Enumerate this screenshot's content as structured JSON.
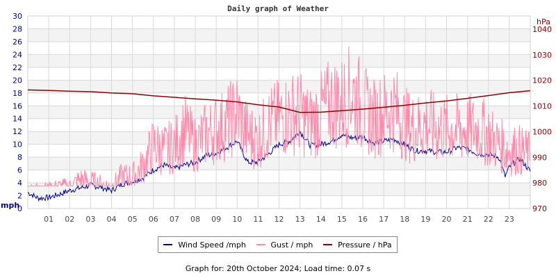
{
  "chart_data": {
    "type": "line",
    "title": "Daily graph of Weather",
    "x_ticks": [
      "01",
      "02",
      "03",
      "04",
      "05",
      "06",
      "07",
      "08",
      "09",
      "10",
      "11",
      "12",
      "13",
      "14",
      "15",
      "16",
      "17",
      "18",
      "19",
      "20",
      "21",
      "22",
      "23"
    ],
    "xlim": [
      0,
      24
    ],
    "y_left": {
      "label": "mph",
      "ylim": [
        0,
        30
      ],
      "ticks": [
        0,
        2,
        4,
        6,
        8,
        10,
        12,
        14,
        16,
        18,
        20,
        22,
        24,
        26,
        28,
        30
      ]
    },
    "y_right": {
      "label": "hPa",
      "ylim": [
        970,
        1045
      ],
      "ticks": [
        970,
        980,
        990,
        1000,
        1010,
        1020,
        1030,
        1040
      ]
    },
    "grid": true,
    "legend_placement": "bottom",
    "series": [
      {
        "name": "Wind Speed /mph",
        "axis": "left",
        "color": "#00008b",
        "x": [
          0,
          0.5,
          1,
          1.5,
          2,
          2.5,
          3,
          3.5,
          4,
          4.5,
          5,
          5.5,
          6,
          6.5,
          7,
          7.5,
          8,
          8.5,
          9,
          9.5,
          10,
          10.5,
          11,
          11.5,
          12,
          12.5,
          13,
          13.5,
          14,
          14.5,
          15,
          15.5,
          16,
          16.5,
          17,
          17.5,
          18,
          18.5,
          19,
          19.5,
          20,
          20.5,
          21,
          21.5,
          22,
          22.5,
          22.8,
          23,
          23.5,
          24
        ],
        "values": [
          2.5,
          1.6,
          1.7,
          2.2,
          2.8,
          3.2,
          3.6,
          3.3,
          2.8,
          3.8,
          4.2,
          4.8,
          6,
          6.8,
          6.2,
          6.8,
          7.2,
          8.2,
          8.6,
          9.5,
          10.5,
          7.2,
          7.2,
          8.5,
          10,
          10.5,
          12,
          9.8,
          10,
          10.5,
          11.5,
          11,
          11.2,
          10.2,
          10.5,
          10.8,
          10,
          9,
          9,
          8.8,
          8.8,
          9.5,
          9.3,
          8.5,
          8.5,
          8,
          5,
          6.5,
          7.8,
          5.8
        ]
      },
      {
        "name": "Gust / mph",
        "axis": "left",
        "color": "#ff88aa",
        "x": [
          0,
          0.5,
          1,
          1.5,
          2,
          2.5,
          3,
          3.5,
          4,
          4.5,
          5,
          5.5,
          6,
          6.5,
          7,
          7.5,
          8,
          8.5,
          9,
          9.5,
          10,
          10.5,
          11,
          11.5,
          12,
          12.5,
          13,
          13.5,
          14,
          14.5,
          15,
          15.5,
          16,
          16.5,
          17,
          17.5,
          18,
          18.5,
          19,
          19.5,
          20,
          20.5,
          21,
          21.5,
          22,
          22.5,
          23,
          23.5,
          24
        ],
        "values": [
          3.5,
          3.5,
          3.5,
          4,
          4,
          5.5,
          5,
          4.5,
          4,
          6,
          6,
          8,
          12,
          11,
          12,
          15,
          12,
          14,
          15,
          16,
          18,
          14,
          13,
          16,
          17,
          18,
          18,
          16,
          18,
          20,
          20,
          22,
          19,
          17,
          18,
          19,
          16,
          15,
          16,
          15,
          15,
          15,
          15,
          15,
          14,
          12,
          11,
          11,
          10
        ]
      },
      {
        "name": "Pressure / hPa",
        "axis": "right",
        "color": "#8b0000",
        "x": [
          0,
          1,
          2,
          3,
          4,
          5,
          6,
          7,
          8,
          9,
          10,
          11,
          12,
          13,
          14,
          15,
          16,
          17,
          18,
          19,
          20,
          21,
          22,
          23,
          24
        ],
        "values": [
          1016.3,
          1016.1,
          1015.8,
          1015.6,
          1015.1,
          1014.8,
          1014,
          1013.4,
          1012.8,
          1012.3,
          1011.6,
          1010.5,
          1009.6,
          1007.5,
          1007.6,
          1008.2,
          1008.8,
          1009.5,
          1010.3,
          1011.2,
          1012,
          1013,
          1014.1,
          1015.2,
          1016
        ]
      }
    ]
  },
  "legend": {
    "wind": "Wind Speed /mph",
    "gust": "Gust / mph",
    "pressure": "Pressure / hPa"
  },
  "footer": "Graph for: 20th October 2024; Load time: 0.07 s"
}
